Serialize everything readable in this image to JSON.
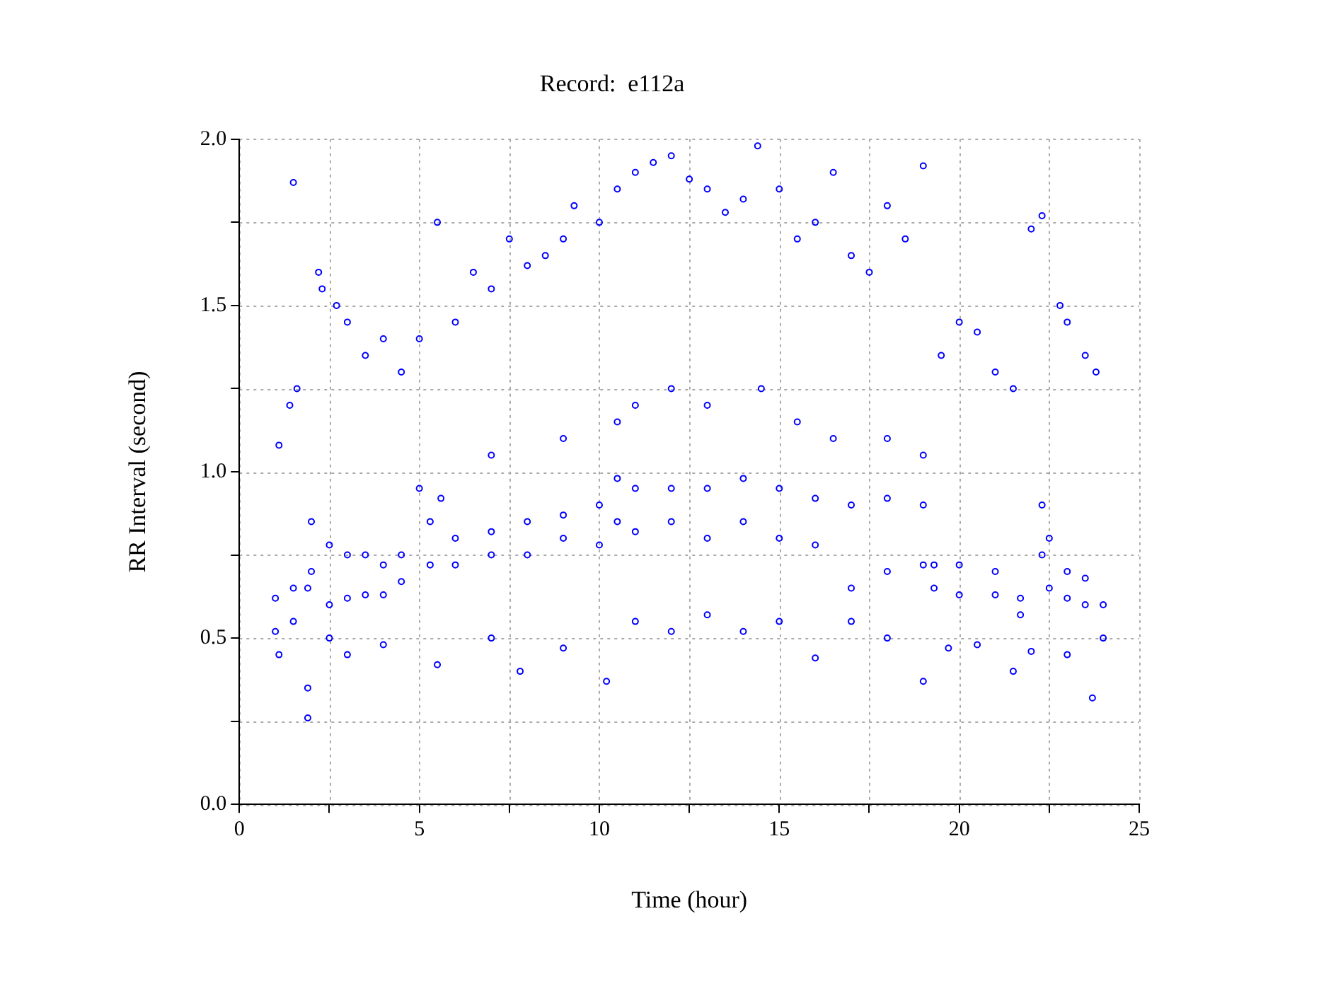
{
  "chart_data": {
    "type": "scatter",
    "title": "Record:  e112a",
    "xlabel": "Time (hour)",
    "ylabel": "RR Interval (second)",
    "xlim": [
      0,
      25
    ],
    "ylim": [
      0,
      2
    ],
    "xticks": [
      0,
      {
        "value": 2.5,
        "label": null
      },
      5,
      {
        "value": 7.5,
        "label": null
      },
      10,
      {
        "value": 12.5,
        "label": null
      },
      15,
      {
        "value": 17.5,
        "label": null
      },
      20,
      {
        "value": 22.5,
        "label": null
      },
      25
    ],
    "yticks": [
      {
        "value": 0,
        "label": "0.0"
      },
      {
        "value": 0.25,
        "label": null
      },
      {
        "value": 0.5,
        "label": "0.5"
      },
      {
        "value": 0.75,
        "label": null
      },
      {
        "value": 1,
        "label": "1.0"
      },
      {
        "value": 1.25,
        "label": null
      },
      {
        "value": 1.5,
        "label": "1.5"
      },
      {
        "value": 1.75,
        "label": null
      },
      {
        "value": 2,
        "label": "2.0"
      }
    ],
    "grid": true,
    "marker": "circle",
    "legend": false,
    "series": [
      {
        "color": "#0000ff",
        "x": [
          1.0,
          1.0,
          1.5,
          1.5,
          1.9,
          1.9,
          2.0,
          2.0,
          2.5,
          2.5,
          3.0,
          3.0,
          3.5,
          3.5,
          4.0,
          4.0,
          4.5,
          4.5,
          5.3,
          5.3,
          5.6,
          6.0,
          6.0,
          7.0,
          7.0,
          8.0,
          8.0,
          9.0,
          9.0,
          10.0,
          10.0,
          10.5,
          10.5,
          11.0,
          11.0,
          12.0,
          12.0,
          13.0,
          13.0,
          14.0,
          14.0,
          15.0,
          15.0,
          16.0,
          16.0,
          17.0,
          17.0,
          18.0,
          18.0,
          19.0,
          19.0,
          19.3,
          19.3,
          20.0,
          20.0,
          21.0,
          21.0,
          21.7,
          21.7,
          22.3,
          22.3,
          22.5,
          22.5,
          23.0,
          23.0,
          23.5,
          23.5,
          24.0,
          24.0,
          1.5,
          1.6,
          1.4,
          1.1,
          2.3,
          2.2,
          2.7,
          3.0,
          3.5,
          4.0,
          4.5,
          5.0,
          5.5,
          6.0,
          6.5,
          7.0,
          7.5,
          8.0,
          8.5,
          9.0,
          9.3,
          10.0,
          10.5,
          11.0,
          11.5,
          12.0,
          12.5,
          13.0,
          13.5,
          14.0,
          14.4,
          15.0,
          15.5,
          16.0,
          16.5,
          17.0,
          17.5,
          18.0,
          18.5,
          19.0,
          19.5,
          20.0,
          20.5,
          21.0,
          21.5,
          22.0,
          22.3,
          22.8,
          23.0,
          23.5,
          23.8,
          5.0,
          7.0,
          9.0,
          10.5,
          11.0,
          12.0,
          13.0,
          14.5,
          15.5,
          16.5,
          18.0,
          19.0,
          1.1,
          1.9,
          2.5,
          3.0,
          4.0,
          5.5,
          7.0,
          7.8,
          9.0,
          10.2,
          11.0,
          12.0,
          13.0,
          14.0,
          15.0,
          16.0,
          17.0,
          18.0,
          19.0,
          19.7,
          20.5,
          21.5,
          22.0,
          23.0,
          23.7
        ],
        "values": [
          0.52,
          0.62,
          0.55,
          0.65,
          0.35,
          0.65,
          0.7,
          0.85,
          0.6,
          0.78,
          0.62,
          0.75,
          0.63,
          0.75,
          0.63,
          0.72,
          0.67,
          0.75,
          0.72,
          0.85,
          0.92,
          0.72,
          0.8,
          0.75,
          0.82,
          0.75,
          0.85,
          0.8,
          0.87,
          0.78,
          0.9,
          0.85,
          0.98,
          0.82,
          0.95,
          0.85,
          0.95,
          0.8,
          0.95,
          0.85,
          0.98,
          0.8,
          0.95,
          0.78,
          0.92,
          0.65,
          0.9,
          0.7,
          0.92,
          0.72,
          0.9,
          0.65,
          0.72,
          0.63,
          0.72,
          0.63,
          0.7,
          0.57,
          0.62,
          0.75,
          0.9,
          0.65,
          0.8,
          0.62,
          0.7,
          0.6,
          0.68,
          0.5,
          0.6,
          1.87,
          1.25,
          1.2,
          1.08,
          1.55,
          1.6,
          1.5,
          1.45,
          1.35,
          1.4,
          1.3,
          1.4,
          1.75,
          1.45,
          1.6,
          1.55,
          1.7,
          1.62,
          1.65,
          1.7,
          1.8,
          1.75,
          1.85,
          1.9,
          1.93,
          1.95,
          1.88,
          1.85,
          1.78,
          1.82,
          1.98,
          1.85,
          1.7,
          1.75,
          1.9,
          1.65,
          1.6,
          1.8,
          1.7,
          1.92,
          1.35,
          1.45,
          1.42,
          1.3,
          1.25,
          1.73,
          1.77,
          1.5,
          1.45,
          1.35,
          1.3,
          0.95,
          1.05,
          1.1,
          1.15,
          1.2,
          1.25,
          1.2,
          1.25,
          1.15,
          1.1,
          1.1,
          1.05,
          0.45,
          0.26,
          0.5,
          0.45,
          0.48,
          0.42,
          0.5,
          0.4,
          0.47,
          0.37,
          0.55,
          0.52,
          0.57,
          0.52,
          0.55,
          0.44,
          0.55,
          0.5,
          0.37,
          0.47,
          0.48,
          0.4,
          0.46,
          0.45,
          0.32
        ]
      }
    ]
  }
}
